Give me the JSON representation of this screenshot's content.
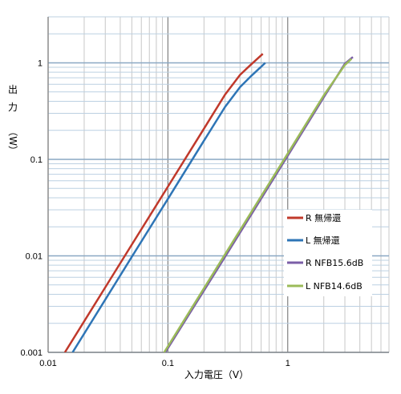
{
  "chart_data": {
    "type": "line",
    "xscale": "log",
    "yscale": "log",
    "xlim": [
      0.01,
      7
    ],
    "ylim": [
      0.001,
      3
    ],
    "xlabel": "入力電圧（V）",
    "ylabel": [
      "出",
      "力",
      "（W）"
    ],
    "grid": true,
    "legend_position": "right",
    "x_ticks": [
      {
        "value": 0.01,
        "label": "0.01"
      },
      {
        "value": 0.1,
        "label": "0.1"
      },
      {
        "value": 1,
        "label": "1"
      }
    ],
    "y_ticks": [
      {
        "value": 0.001,
        "label": "0.001"
      },
      {
        "value": 0.01,
        "label": "0.01"
      },
      {
        "value": 0.1,
        "label": "0.1"
      },
      {
        "value": 1,
        "label": "1"
      }
    ],
    "series": [
      {
        "name": "R 無帰還",
        "color": "#c0392b",
        "points": [
          [
            0.0138,
            0.001
          ],
          [
            0.05,
            0.0131
          ],
          [
            0.1,
            0.0522
          ],
          [
            0.2,
            0.208
          ],
          [
            0.3,
            0.47
          ],
          [
            0.4,
            0.75
          ],
          [
            0.48,
            0.93
          ],
          [
            0.62,
            1.24
          ]
        ]
      },
      {
        "name": "L 無帰還",
        "color": "#2e75b6",
        "points": [
          [
            0.016,
            0.001
          ],
          [
            0.05,
            0.0098
          ],
          [
            0.1,
            0.039
          ],
          [
            0.2,
            0.156
          ],
          [
            0.3,
            0.35
          ],
          [
            0.4,
            0.56
          ],
          [
            0.5,
            0.74
          ],
          [
            0.65,
            1.0
          ]
        ]
      },
      {
        "name": "R NFB15.6dB",
        "color": "#7b5ea7",
        "points": [
          [
            0.095,
            0.001
          ],
          [
            0.3,
            0.0098
          ],
          [
            1.0,
            0.109
          ],
          [
            2.0,
            0.44
          ],
          [
            3.0,
            0.98
          ],
          [
            3.5,
            1.15
          ]
        ]
      },
      {
        "name": "L NFB14.6dB",
        "color": "#9bbb59",
        "points": [
          [
            0.093,
            0.001
          ],
          [
            0.3,
            0.0104
          ],
          [
            1.0,
            0.115
          ],
          [
            2.0,
            0.46
          ],
          [
            3.0,
            0.95
          ],
          [
            3.4,
            1.1
          ]
        ]
      }
    ]
  }
}
